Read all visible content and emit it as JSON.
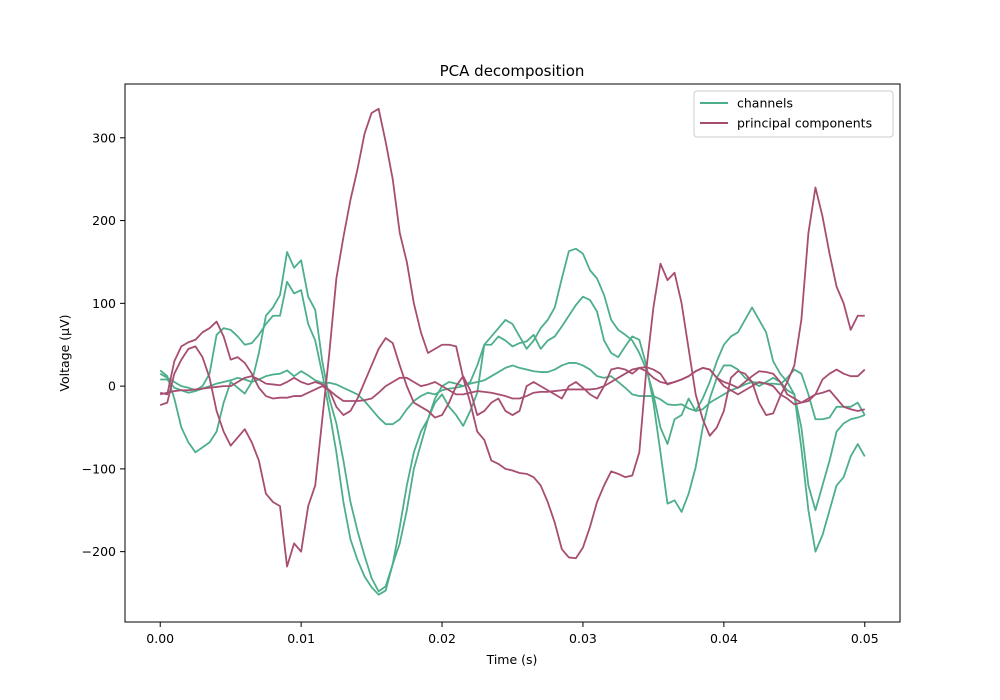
{
  "chart_data": {
    "type": "line",
    "title": "PCA decomposition",
    "xlabel": "Time (s)",
    "ylabel": "Voltage (µV)",
    "xlim": [
      -0.0025,
      0.0525
    ],
    "ylim": [
      -285,
      365
    ],
    "xticks": [
      0.0,
      0.01,
      0.02,
      0.03,
      0.04,
      0.05
    ],
    "xtick_labels": [
      "0.00",
      "0.01",
      "0.02",
      "0.03",
      "0.04",
      "0.05"
    ],
    "yticks": [
      -200,
      -100,
      0,
      100,
      200,
      300
    ],
    "ytick_labels": [
      "−200",
      "−100",
      "0",
      "100",
      "200",
      "300"
    ],
    "grid": false,
    "legend_position": "top-right",
    "legend": [
      {
        "label": "channels",
        "color": "#4daf8a"
      },
      {
        "label": "principal components",
        "color": "#a84d72"
      }
    ],
    "x": [
      0.0,
      0.0005,
      0.001,
      0.0015,
      0.002,
      0.0025,
      0.003,
      0.0035,
      0.004,
      0.0045,
      0.005,
      0.0055,
      0.006,
      0.0065,
      0.007,
      0.0075,
      0.008,
      0.0085,
      0.009,
      0.0095,
      0.01,
      0.0105,
      0.011,
      0.0115,
      0.012,
      0.0125,
      0.013,
      0.0135,
      0.014,
      0.0145,
      0.015,
      0.0155,
      0.016,
      0.0165,
      0.017,
      0.0175,
      0.018,
      0.0185,
      0.019,
      0.0195,
      0.02,
      0.0205,
      0.021,
      0.0215,
      0.022,
      0.0225,
      0.023,
      0.0235,
      0.024,
      0.0245,
      0.025,
      0.0255,
      0.026,
      0.0265,
      0.027,
      0.0275,
      0.028,
      0.0285,
      0.029,
      0.0295,
      0.03,
      0.0305,
      0.031,
      0.0315,
      0.032,
      0.0325,
      0.033,
      0.0335,
      0.034,
      0.0345,
      0.035,
      0.0355,
      0.036,
      0.0365,
      0.037,
      0.0375,
      0.038,
      0.0385,
      0.039,
      0.0395,
      0.04,
      0.0405,
      0.041,
      0.0415,
      0.042,
      0.0425,
      0.043,
      0.0435,
      0.044,
      0.0445,
      0.045,
      0.0455,
      0.046,
      0.0465,
      0.047,
      0.0475,
      0.048,
      0.0485,
      0.049,
      0.0495,
      0.05
    ],
    "series": [
      {
        "group": "channels",
        "color": "#4daf8a",
        "values": [
          8,
          8,
          -2,
          -5,
          -8,
          -6,
          -3,
          0,
          3,
          5,
          7,
          10,
          8,
          5,
          8,
          12,
          14,
          15,
          19,
          12,
          18,
          13,
          7,
          4,
          4,
          2,
          -2,
          -6,
          -10,
          -18,
          -28,
          -38,
          -46,
          -46,
          -40,
          -28,
          -18,
          -12,
          -8,
          -10,
          -5,
          -3,
          -2,
          0,
          3,
          5,
          7,
          12,
          17,
          22,
          25,
          22,
          20,
          18,
          17,
          17,
          20,
          25,
          28,
          28,
          25,
          20,
          12,
          10,
          12,
          5,
          -2,
          -10,
          -12,
          -12,
          -12,
          -16,
          -22,
          -23,
          -22,
          -27,
          -30,
          -28,
          -20,
          -15,
          -10,
          -5,
          -2,
          2,
          5,
          4,
          3,
          3,
          2,
          10,
          20,
          15,
          -10,
          -40,
          -40,
          -38,
          -25,
          -25,
          -25,
          -20,
          -35
        ]
      },
      {
        "group": "channels",
        "color": "#4daf8a",
        "values": [
          19,
          12,
          -15,
          -50,
          -68,
          -80,
          -74,
          -68,
          -55,
          -20,
          5,
          -2,
          -9,
          5,
          40,
          85,
          95,
          110,
          162,
          143,
          152,
          108,
          92,
          30,
          -15,
          -45,
          -90,
          -140,
          -175,
          -205,
          -232,
          -248,
          -242,
          -215,
          -190,
          -150,
          -100,
          -70,
          -40,
          -15,
          0,
          5,
          3,
          0,
          5,
          25,
          50,
          60,
          70,
          80,
          75,
          60,
          45,
          55,
          70,
          80,
          95,
          130,
          163,
          166,
          160,
          140,
          130,
          110,
          80,
          68,
          62,
          55,
          40,
          20,
          -10,
          -50,
          -70,
          -40,
          -35,
          -15,
          -30,
          -15,
          5,
          30,
          50,
          60,
          65,
          80,
          95,
          80,
          65,
          30,
          15,
          5,
          -10,
          -50,
          -120,
          -150,
          -120,
          -90,
          -55,
          -45,
          -40,
          -38,
          -35
        ]
      },
      {
        "group": "channels",
        "color": "#4daf8a",
        "values": [
          15,
          10,
          5,
          0,
          -2,
          -5,
          0,
          15,
          62,
          70,
          68,
          60,
          50,
          52,
          62,
          75,
          85,
          85,
          126,
          112,
          116,
          75,
          55,
          15,
          -30,
          -80,
          -140,
          -185,
          -210,
          -230,
          -243,
          -252,
          -247,
          -215,
          -170,
          -120,
          -80,
          -55,
          -40,
          -20,
          -10,
          -25,
          -35,
          -48,
          -30,
          -8,
          50,
          50,
          60,
          55,
          48,
          52,
          54,
          62,
          45,
          55,
          60,
          72,
          85,
          98,
          108,
          104,
          90,
          55,
          40,
          35,
          48,
          60,
          56,
          25,
          -20,
          -80,
          -142,
          -138,
          -152,
          -130,
          -98,
          -50,
          -15,
          10,
          25,
          25,
          20,
          10,
          5,
          0,
          5,
          10,
          5,
          -5,
          -10,
          -75,
          -150,
          -200,
          -180,
          -150,
          -120,
          -110,
          -85,
          -70,
          -85
        ]
      },
      {
        "group": "principal components",
        "color": "#a84d72",
        "values": [
          -23,
          -20,
          15,
          32,
          45,
          48,
          35,
          10,
          -30,
          -55,
          -72,
          -62,
          -52,
          -68,
          -90,
          -130,
          -140,
          -145,
          -218,
          -190,
          -200,
          -145,
          -120,
          -40,
          40,
          130,
          180,
          225,
          262,
          305,
          330,
          335,
          295,
          250,
          185,
          150,
          100,
          65,
          40,
          45,
          50,
          50,
          48,
          10,
          -20,
          -55,
          -65,
          -90,
          -94,
          -100,
          -102,
          -105,
          -106,
          -110,
          -120,
          -140,
          -165,
          -197,
          -207,
          -208,
          -195,
          -170,
          -140,
          -120,
          -103,
          -106,
          -110,
          -108,
          -80,
          20,
          95,
          148,
          128,
          137,
          100,
          45,
          -10,
          -40,
          -60,
          -50,
          -30,
          10,
          18,
          15,
          5,
          -20,
          -35,
          -33,
          -12,
          5,
          25,
          80,
          185,
          240,
          205,
          160,
          120,
          100,
          68,
          85,
          85
        ]
      },
      {
        "group": "principal components",
        "color": "#a84d72",
        "values": [
          -8,
          -10,
          30,
          48,
          53,
          56,
          65,
          70,
          78,
          60,
          32,
          35,
          28,
          15,
          -2,
          -12,
          -15,
          -14,
          -14,
          -12,
          -12,
          -8,
          -4,
          0,
          -5,
          -25,
          -35,
          -30,
          -15,
          5,
          25,
          45,
          58,
          52,
          25,
          0,
          -20,
          -25,
          -30,
          -38,
          -35,
          -20,
          0,
          12,
          -5,
          -35,
          -30,
          -20,
          -15,
          -30,
          -35,
          -30,
          0,
          5,
          0,
          -5,
          -10,
          -15,
          0,
          5,
          -2,
          -10,
          -15,
          0,
          20,
          22,
          20,
          15,
          22,
          23,
          20,
          15,
          2,
          5,
          8,
          12,
          18,
          22,
          20,
          10,
          5,
          2,
          -2,
          5,
          12,
          18,
          17,
          15,
          5,
          -10,
          -15,
          -20,
          -18,
          -10,
          8,
          15,
          20,
          15,
          12,
          12,
          20
        ]
      },
      {
        "group": "principal components",
        "color": "#a84d72",
        "values": [
          -10,
          -8,
          -6,
          -5,
          -5,
          -4,
          -3,
          -2,
          -1,
          0,
          0,
          5,
          10,
          12,
          8,
          3,
          2,
          1,
          5,
          10,
          5,
          2,
          5,
          2,
          -5,
          -12,
          -18,
          -18,
          -18,
          -17,
          -15,
          -8,
          0,
          5,
          10,
          10,
          5,
          0,
          2,
          5,
          0,
          -5,
          -10,
          -10,
          -8,
          -6,
          -7,
          -8,
          -10,
          -12,
          -15,
          -15,
          -12,
          -8,
          -7,
          -7,
          -6,
          -5,
          -4,
          -4,
          -4,
          -4,
          -3,
          0,
          5,
          10,
          15,
          20,
          22,
          18,
          10,
          5,
          3,
          5,
          8,
          12,
          18,
          22,
          20,
          10,
          0,
          -5,
          -10,
          -5,
          0,
          5,
          3,
          0,
          -10,
          -15,
          -22,
          -20,
          -15,
          -10,
          -8,
          -5,
          -15,
          -25,
          -28,
          -30,
          -28
        ]
      }
    ]
  }
}
